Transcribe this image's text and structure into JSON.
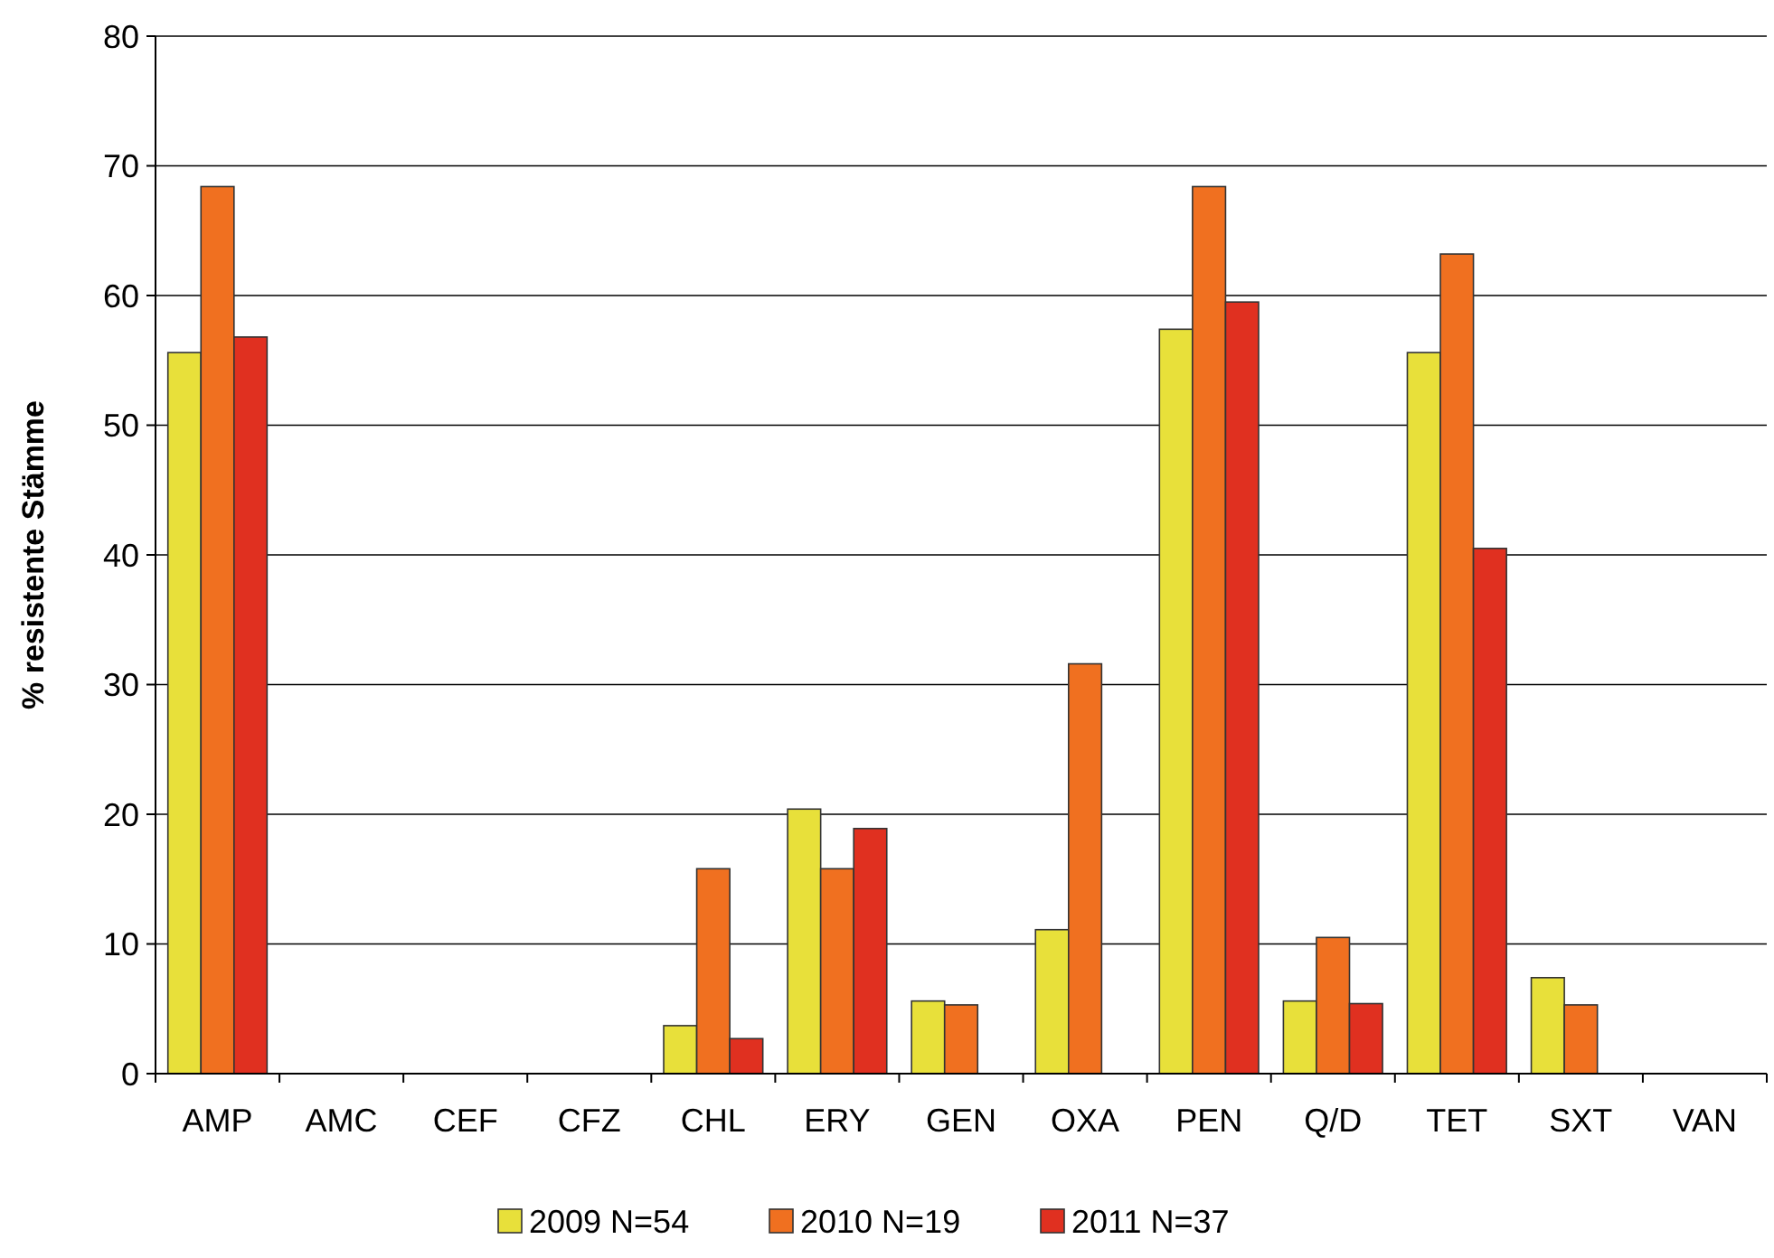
{
  "chart_data": {
    "type": "bar",
    "ylabel": "% resistente Stämme",
    "categories": [
      "AMP",
      "AMC",
      "CEF",
      "CFZ",
      "CHL",
      "ERY",
      "GEN",
      "OXA",
      "PEN",
      "Q/D",
      "TET",
      "SXT",
      "VAN"
    ],
    "series": [
      {
        "name": "2009 N=54",
        "color": "#e8e03a",
        "values": [
          55.6,
          0,
          0,
          0,
          3.7,
          20.4,
          5.6,
          11.1,
          57.4,
          5.6,
          55.6,
          7.4,
          0
        ]
      },
      {
        "name": "2010 N=19",
        "color": "#f07020",
        "values": [
          68.4,
          0,
          0,
          0,
          15.8,
          15.8,
          5.3,
          31.6,
          68.4,
          10.5,
          63.2,
          5.3,
          0
        ]
      },
      {
        "name": "2011 N=37",
        "color": "#e03020",
        "values": [
          56.8,
          0,
          0,
          0,
          2.7,
          18.9,
          0,
          0,
          59.5,
          5.4,
          40.5,
          0,
          0
        ]
      }
    ],
    "ylim": [
      0,
      80
    ],
    "yticks": [
      0,
      10,
      20,
      30,
      40,
      50,
      60,
      70,
      80
    ],
    "grid": "y",
    "legend": "bottom"
  }
}
